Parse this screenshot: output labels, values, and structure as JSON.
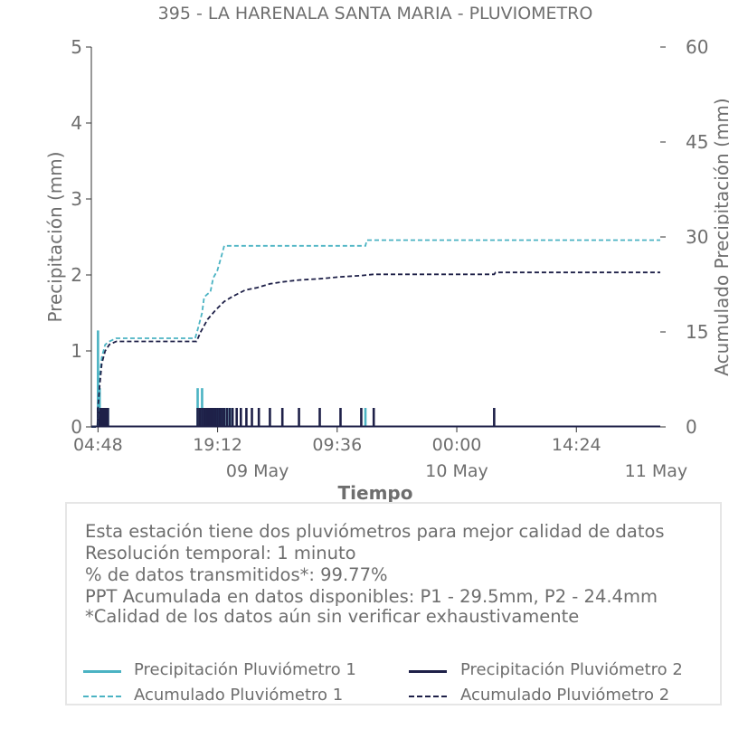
{
  "chart_data": {
    "type": "line",
    "title": "395 - LA HARENALA SANTA MARIA - PLUVIOMETRO",
    "xlabel": "Tiempo",
    "ylabel": "Precipitación (mm)",
    "y2label": "Acumulado Precipitación (mm)",
    "xlim": [
      "2024-05-08 04:00",
      "2024-05-11 00:30"
    ],
    "ylim": [
      0,
      5
    ],
    "y2lim": [
      0,
      60
    ],
    "y_ticks": [
      "0",
      "1",
      "2",
      "3",
      "4",
      "5"
    ],
    "y2_ticks": [
      "0",
      "15",
      "30",
      "45",
      "60"
    ],
    "x_tick_labels": [
      {
        "t": "2024-05-08 04:48",
        "label": "04:48"
      },
      {
        "t": "2024-05-08 19:12",
        "label": "19:12"
      },
      {
        "t": "2024-05-09 09:36",
        "label": "09:36"
      },
      {
        "t": "2024-05-10 00:00",
        "label": "00:00"
      },
      {
        "t": "2024-05-10 14:24",
        "label": "14:24"
      }
    ],
    "x_date_labels": [
      {
        "t": "2024-05-09 00:00",
        "label": "09 May"
      },
      {
        "t": "2024-05-10 00:00",
        "label": "10 May"
      },
      {
        "t": "2024-05-11 00:00",
        "label": "11 May"
      }
    ],
    "grid": false,
    "series": [
      {
        "name": "Precipitación Pluviómetro 1",
        "axis": "left",
        "style": "bars",
        "color": "#4bb3c3",
        "points": [
          [
            "2024-05-08 04:48",
            1.27
          ],
          [
            "2024-05-08 05:00",
            0.51
          ],
          [
            "2024-05-08 05:12",
            0.25
          ],
          [
            "2024-05-08 05:24",
            0.25
          ],
          [
            "2024-05-08 05:36",
            0.25
          ],
          [
            "2024-05-08 05:48",
            0.25
          ],
          [
            "2024-05-08 06:00",
            0.25
          ],
          [
            "2024-05-08 16:48",
            0.51
          ],
          [
            "2024-05-08 17:20",
            0.51
          ],
          [
            "2024-05-08 17:40",
            0.25
          ],
          [
            "2024-05-08 18:00",
            0.25
          ],
          [
            "2024-05-08 18:20",
            0.25
          ],
          [
            "2024-05-08 18:40",
            0.25
          ],
          [
            "2024-05-08 19:00",
            0.25
          ],
          [
            "2024-05-08 19:20",
            0.25
          ],
          [
            "2024-05-08 19:40",
            0.25
          ],
          [
            "2024-05-08 20:00",
            0.25
          ],
          [
            "2024-05-08 20:20",
            0.25
          ],
          [
            "2024-05-08 20:40",
            0.25
          ],
          [
            "2024-05-08 21:00",
            0.25
          ],
          [
            "2024-05-09 13:00",
            0.25
          ]
        ]
      },
      {
        "name": "Precipitación Pluviómetro 2",
        "axis": "left",
        "style": "bars",
        "color": "#1e2048",
        "points": [
          [
            "2024-05-08 04:48",
            0.25
          ],
          [
            "2024-05-08 05:00",
            0.25
          ],
          [
            "2024-05-08 05:12",
            0.25
          ],
          [
            "2024-05-08 05:24",
            0.25
          ],
          [
            "2024-05-08 05:36",
            0.25
          ],
          [
            "2024-05-08 05:48",
            0.25
          ],
          [
            "2024-05-08 06:00",
            0.25
          ],
          [
            "2024-05-08 16:48",
            0.25
          ],
          [
            "2024-05-08 17:04",
            0.25
          ],
          [
            "2024-05-08 17:20",
            0.25
          ],
          [
            "2024-05-08 17:36",
            0.25
          ],
          [
            "2024-05-08 17:52",
            0.25
          ],
          [
            "2024-05-08 18:08",
            0.25
          ],
          [
            "2024-05-08 18:24",
            0.25
          ],
          [
            "2024-05-08 18:40",
            0.25
          ],
          [
            "2024-05-08 18:56",
            0.25
          ],
          [
            "2024-05-08 19:12",
            0.25
          ],
          [
            "2024-05-08 19:28",
            0.25
          ],
          [
            "2024-05-08 19:44",
            0.25
          ],
          [
            "2024-05-08 20:00",
            0.25
          ],
          [
            "2024-05-08 20:20",
            0.25
          ],
          [
            "2024-05-08 20:40",
            0.25
          ],
          [
            "2024-05-08 21:00",
            0.25
          ],
          [
            "2024-05-08 21:30",
            0.25
          ],
          [
            "2024-05-08 22:00",
            0.25
          ],
          [
            "2024-05-08 22:40",
            0.25
          ],
          [
            "2024-05-08 23:20",
            0.25
          ],
          [
            "2024-05-09 00:10",
            0.25
          ],
          [
            "2024-05-09 01:30",
            0.25
          ],
          [
            "2024-05-09 03:00",
            0.25
          ],
          [
            "2024-05-09 05:00",
            0.25
          ],
          [
            "2024-05-09 07:30",
            0.25
          ],
          [
            "2024-05-09 10:00",
            0.25
          ],
          [
            "2024-05-09 12:30",
            0.25
          ],
          [
            "2024-05-09 14:00",
            0.25
          ],
          [
            "2024-05-10 04:30",
            0.25
          ]
        ]
      },
      {
        "name": "Acumulado Pluviómetro 1",
        "axis": "right",
        "style": "dashed",
        "color": "#4bb3c3",
        "points": [
          [
            "2024-05-08 04:00",
            0.0
          ],
          [
            "2024-05-08 04:44",
            0.0
          ],
          [
            "2024-05-08 04:48",
            2.0
          ],
          [
            "2024-05-08 04:53",
            4.0
          ],
          [
            "2024-05-08 05:00",
            8.0
          ],
          [
            "2024-05-08 05:15",
            11.0
          ],
          [
            "2024-05-08 05:40",
            13.0
          ],
          [
            "2024-05-08 06:10",
            13.5
          ],
          [
            "2024-05-08 07:00",
            14.0
          ],
          [
            "2024-05-08 16:30",
            14.0
          ],
          [
            "2024-05-08 16:50",
            15.5
          ],
          [
            "2024-05-08 17:20",
            18.0
          ],
          [
            "2024-05-08 17:35",
            20.5
          ],
          [
            "2024-05-08 18:00",
            21.0
          ],
          [
            "2024-05-08 18:20",
            21.3
          ],
          [
            "2024-05-08 18:40",
            23.5
          ],
          [
            "2024-05-08 19:10",
            24.7
          ],
          [
            "2024-05-08 19:40",
            27.0
          ],
          [
            "2024-05-08 20:00",
            28.6
          ],
          [
            "2024-05-09 13:00",
            28.6
          ],
          [
            "2024-05-09 13:10",
            29.5
          ],
          [
            "2024-05-11 00:30",
            29.5
          ]
        ]
      },
      {
        "name": "Acumulado Pluviómetro 2",
        "axis": "right",
        "style": "dashed",
        "color": "#1e2048",
        "points": [
          [
            "2024-05-08 04:00",
            0.0
          ],
          [
            "2024-05-08 04:44",
            0.0
          ],
          [
            "2024-05-08 04:48",
            3.0
          ],
          [
            "2024-05-08 05:00",
            6.5
          ],
          [
            "2024-05-08 05:15",
            10.0
          ],
          [
            "2024-05-08 05:40",
            12.0
          ],
          [
            "2024-05-08 06:10",
            13.0
          ],
          [
            "2024-05-08 07:00",
            13.5
          ],
          [
            "2024-05-08 16:40",
            13.5
          ],
          [
            "2024-05-08 17:10",
            15.0
          ],
          [
            "2024-05-08 18:00",
            17.0
          ],
          [
            "2024-05-08 19:00",
            18.5
          ],
          [
            "2024-05-08 20:00",
            19.8
          ],
          [
            "2024-05-08 21:00",
            20.6
          ],
          [
            "2024-05-08 22:30",
            21.6
          ],
          [
            "2024-05-09 00:00",
            22.0
          ],
          [
            "2024-05-09 01:30",
            22.6
          ],
          [
            "2024-05-09 03:00",
            22.9
          ],
          [
            "2024-05-09 05:00",
            23.2
          ],
          [
            "2024-05-09 07:30",
            23.4
          ],
          [
            "2024-05-09 10:00",
            23.7
          ],
          [
            "2024-05-09 12:30",
            23.9
          ],
          [
            "2024-05-09 14:00",
            24.1
          ],
          [
            "2024-05-10 04:30",
            24.1
          ],
          [
            "2024-05-10 04:40",
            24.4
          ],
          [
            "2024-05-11 00:30",
            24.4
          ]
        ]
      }
    ]
  },
  "info": {
    "lines": [
      "Esta estación tiene dos pluviómetros para mejor calidad de datos",
      "Resolución temporal: 1 minuto",
      "% de datos transmitidos*: 99.77%",
      "PPT Acumulada en datos disponibles: P1 - 29.5mm, P2 - 24.4mm",
      "*Calidad de los datos aún sin verificar exhaustivamente"
    ]
  },
  "legend": {
    "items": [
      {
        "label": "Precipitación Pluviómetro 1",
        "color": "#4bb3c3",
        "style": "solid"
      },
      {
        "label": "Precipitación Pluviómetro 2",
        "color": "#1e2048",
        "style": "solid"
      },
      {
        "label": "Acumulado Pluviómetro 1",
        "color": "#4bb3c3",
        "style": "dashed"
      },
      {
        "label": "Acumulado Pluviómetro 2",
        "color": "#1e2048",
        "style": "dashed"
      }
    ]
  }
}
